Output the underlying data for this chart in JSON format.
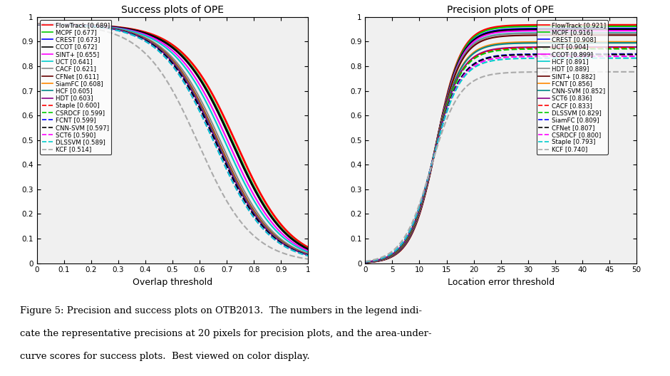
{
  "success_title": "Success plots of OPE",
  "precision_title": "Precision plots of OPE",
  "success_xlabel": "Overlap threshold",
  "precision_xlabel": "Location error threshold",
  "success_trackers": [
    {
      "name": "FlowTrack",
      "score": 0.689,
      "color": "#ff0000",
      "linestyle": "solid",
      "linewidth": 2.0
    },
    {
      "name": "MCPF",
      "score": 0.677,
      "color": "#00cc00",
      "linestyle": "solid",
      "linewidth": 1.5
    },
    {
      "name": "CREST",
      "score": 0.673,
      "color": "#0000ff",
      "linestyle": "solid",
      "linewidth": 1.5
    },
    {
      "name": "CCOT",
      "score": 0.672,
      "color": "#000000",
      "linestyle": "solid",
      "linewidth": 2.0
    },
    {
      "name": "SINT+",
      "score": 0.655,
      "color": "#ff00ff",
      "linestyle": "solid",
      "linewidth": 1.5
    },
    {
      "name": "UCT",
      "score": 0.641,
      "color": "#00cccc",
      "linestyle": "solid",
      "linewidth": 1.5
    },
    {
      "name": "CACF",
      "score": 0.621,
      "color": "#888888",
      "linestyle": "solid",
      "linewidth": 1.5
    },
    {
      "name": "CFNet",
      "score": 0.611,
      "color": "#660000",
      "linestyle": "solid",
      "linewidth": 1.5
    },
    {
      "name": "SiamFC",
      "score": 0.608,
      "color": "#ff8800",
      "linestyle": "solid",
      "linewidth": 1.5
    },
    {
      "name": "HCF",
      "score": 0.605,
      "color": "#008888",
      "linestyle": "solid",
      "linewidth": 1.5
    },
    {
      "name": "HDT",
      "score": 0.603,
      "color": "#880088",
      "linestyle": "solid",
      "linewidth": 1.5
    },
    {
      "name": "Staple",
      "score": 0.6,
      "color": "#ff0000",
      "linestyle": "dashed",
      "linewidth": 1.5
    },
    {
      "name": "CSRDCF",
      "score": 0.599,
      "color": "#00cc00",
      "linestyle": "dashed",
      "linewidth": 1.5
    },
    {
      "name": "FCNT",
      "score": 0.599,
      "color": "#0000ff",
      "linestyle": "dashed",
      "linewidth": 1.5
    },
    {
      "name": "CNN-SVM",
      "score": 0.597,
      "color": "#000000",
      "linestyle": "dashed",
      "linewidth": 1.5
    },
    {
      "name": "SCT6",
      "score": 0.59,
      "color": "#ff00ff",
      "linestyle": "dashed",
      "linewidth": 1.5
    },
    {
      "name": "DLSSVM",
      "score": 0.589,
      "color": "#00cccc",
      "linestyle": "dashed",
      "linewidth": 1.5
    },
    {
      "name": "KCF",
      "score": 0.514,
      "color": "#aaaaaa",
      "linestyle": "dashed",
      "linewidth": 1.5
    }
  ],
  "precision_trackers": [
    {
      "name": "FlowTrack",
      "score": 0.921,
      "color": "#ff0000",
      "linestyle": "solid",
      "linewidth": 2.0
    },
    {
      "name": "MCPF",
      "score": 0.916,
      "color": "#00cc00",
      "linestyle": "solid",
      "linewidth": 1.5
    },
    {
      "name": "CREST",
      "score": 0.908,
      "color": "#0000ff",
      "linestyle": "solid",
      "linewidth": 1.5
    },
    {
      "name": "UCT",
      "score": 0.904,
      "color": "#000000",
      "linestyle": "solid",
      "linewidth": 2.0
    },
    {
      "name": "CCOT",
      "score": 0.899,
      "color": "#ff00ff",
      "linestyle": "solid",
      "linewidth": 1.5
    },
    {
      "name": "HCF",
      "score": 0.891,
      "color": "#00cccc",
      "linestyle": "solid",
      "linewidth": 1.5
    },
    {
      "name": "HDT",
      "score": 0.889,
      "color": "#888888",
      "linestyle": "solid",
      "linewidth": 1.5
    },
    {
      "name": "SINT+",
      "score": 0.882,
      "color": "#660000",
      "linestyle": "solid",
      "linewidth": 1.5
    },
    {
      "name": "FCNT",
      "score": 0.856,
      "color": "#ff8800",
      "linestyle": "solid",
      "linewidth": 1.5
    },
    {
      "name": "CNN-SVM",
      "score": 0.852,
      "color": "#008888",
      "linestyle": "solid",
      "linewidth": 1.5
    },
    {
      "name": "SCT6",
      "score": 0.836,
      "color": "#880088",
      "linestyle": "solid",
      "linewidth": 1.5
    },
    {
      "name": "CACF",
      "score": 0.833,
      "color": "#ff0000",
      "linestyle": "dashed",
      "linewidth": 1.5
    },
    {
      "name": "DLSSVM",
      "score": 0.829,
      "color": "#00cc00",
      "linestyle": "dashed",
      "linewidth": 1.5
    },
    {
      "name": "SiamFC",
      "score": 0.809,
      "color": "#0000ff",
      "linestyle": "dashed",
      "linewidth": 1.5
    },
    {
      "name": "CFNet",
      "score": 0.807,
      "color": "#000000",
      "linestyle": "dashed",
      "linewidth": 1.5
    },
    {
      "name": "CSRDCF",
      "score": 0.8,
      "color": "#ff00ff",
      "linestyle": "dashed",
      "linewidth": 1.5
    },
    {
      "name": "Staple",
      "score": 0.793,
      "color": "#00cccc",
      "linestyle": "dashed",
      "linewidth": 1.5
    },
    {
      "name": "KCF",
      "score": 0.74,
      "color": "#aaaaaa",
      "linestyle": "dashed",
      "linewidth": 1.5
    }
  ],
  "caption_line1": "Figure 5: Precision and success plots on OTB2013.  The numbers in the legend indi-",
  "caption_line2": "cate the representative precisions at 20 pixels for precision plots, and the area-under-",
  "caption_line3": "curve scores for success plots.  Best viewed on color display."
}
